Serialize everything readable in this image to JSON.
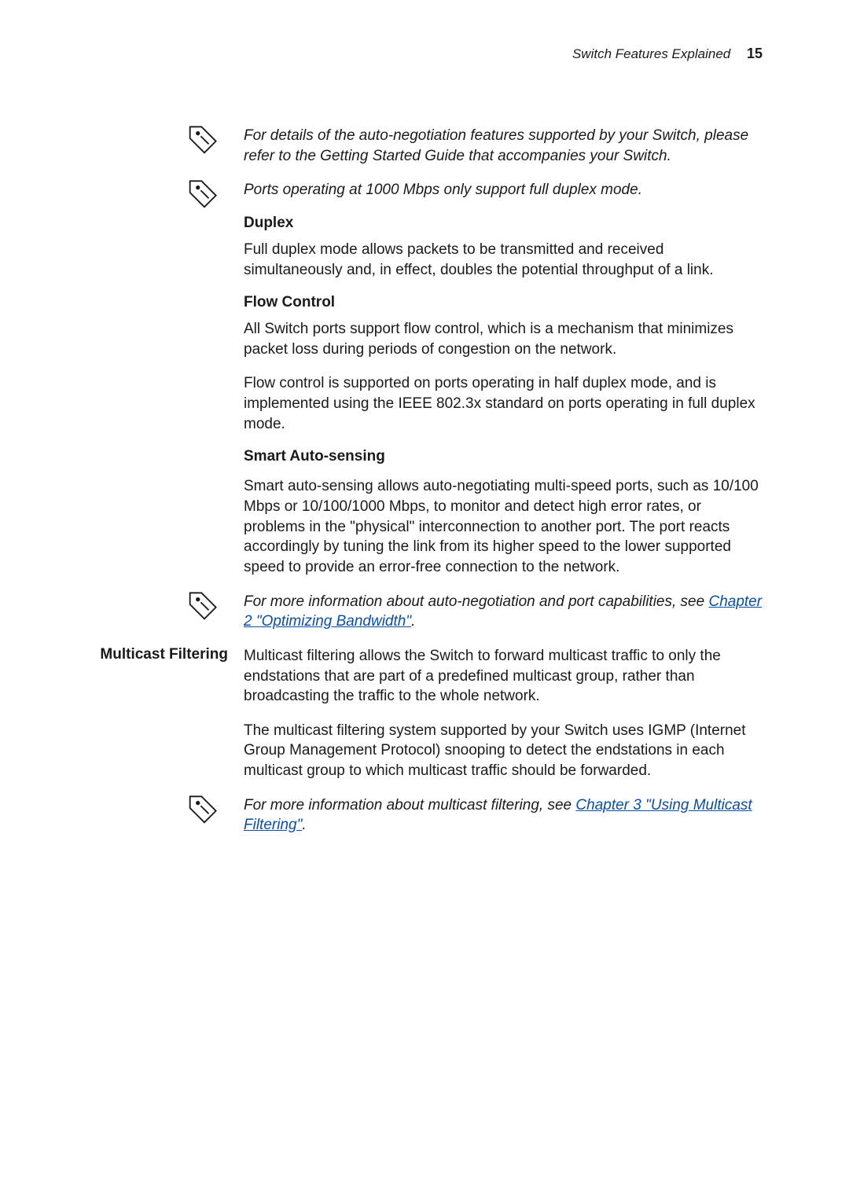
{
  "header": {
    "section_title": "Switch Features Explained",
    "page_number": "15"
  },
  "notes": {
    "n1": "For details of the auto-negotiation features supported by your Switch, please refer to the Getting Started Guide that accompanies your Switch.",
    "n2": "Ports operating at 1000 Mbps only support full duplex mode.",
    "n3_pre": "For more information about auto-negotiation and port capabilities, see ",
    "n3_link": "Chapter 2  \"Optimizing Bandwidth\"",
    "n4_pre": "For more information about multicast filtering, see ",
    "n4_link": "Chapter 3  \"Using Multicast Filtering\""
  },
  "duplex": {
    "heading": "Duplex",
    "p1": "Full duplex mode allows packets to be transmitted and received simultaneously and, in effect, doubles the potential throughput of a link."
  },
  "flow": {
    "heading": "Flow Control",
    "p1": "All Switch ports support flow control, which is a mechanism that minimizes packet loss during periods of congestion on the network.",
    "p2": "Flow control is supported on ports operating in half duplex mode, and is implemented using the IEEE 802.3x standard on ports operating in full duplex mode."
  },
  "smart": {
    "heading": "Smart Auto-sensing",
    "p1": "Smart auto-sensing allows auto-negotiating multi-speed ports, such as 10/100 Mbps or 10/100/1000 Mbps, to monitor and detect high error rates, or problems in the \"physical\" interconnection to another port. The port reacts accordingly by tuning the link from its higher speed to the lower supported speed to provide an error-free connection to the network."
  },
  "multicast": {
    "label": "Multicast Filtering",
    "p1": "Multicast filtering allows the Switch to forward multicast traffic to only the endstations that are part of a predefined multicast group, rather than broadcasting the traffic to the whole network.",
    "p2": "The multicast filtering system supported by your Switch uses IGMP (Internet Group Management Protocol) snooping to detect the endstations in each multicast group to which multicast traffic should be forwarded."
  },
  "period": ".",
  "icons": {
    "info_stroke": "#1a1a1a"
  }
}
